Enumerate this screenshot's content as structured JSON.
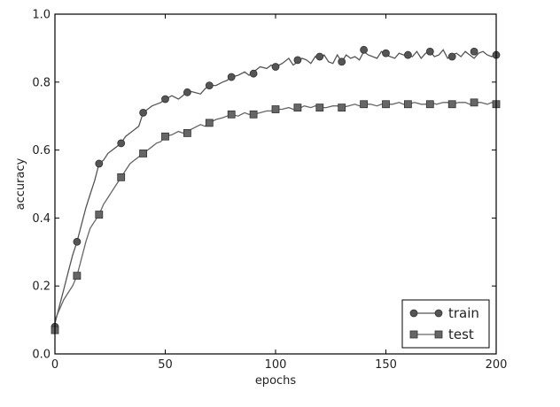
{
  "chart_data": {
    "type": "line",
    "title": "",
    "xlabel": "epochs",
    "ylabel": "accuracy",
    "xlim": [
      0,
      200
    ],
    "ylim": [
      0.0,
      1.0
    ],
    "xticks": [
      "0",
      "50",
      "100",
      "150",
      "200"
    ],
    "yticks": [
      "0.0",
      "0.2",
      "0.4",
      "0.6",
      "0.8",
      "1.0"
    ],
    "grid": false,
    "legend_position": "bottom-right",
    "series": [
      {
        "name": "train",
        "color": "#555555",
        "marker": "circle",
        "line_x": [
          0,
          2,
          4,
          6,
          8,
          10,
          12,
          14,
          16,
          18,
          20,
          22,
          24,
          26,
          28,
          30,
          32,
          34,
          36,
          38,
          40,
          42,
          44,
          46,
          48,
          50,
          53,
          56,
          58,
          60,
          63,
          66,
          68,
          70,
          73,
          76,
          78,
          80,
          83,
          86,
          88,
          90,
          93,
          96,
          98,
          100,
          103,
          106,
          108,
          110,
          112,
          114,
          116,
          118,
          120,
          122,
          124,
          126,
          128,
          130,
          132,
          134,
          136,
          138,
          140,
          142,
          144,
          146,
          148,
          150,
          152,
          154,
          156,
          158,
          160,
          162,
          164,
          166,
          168,
          170,
          172,
          174,
          176,
          178,
          180,
          182,
          184,
          186,
          188,
          190,
          192,
          194,
          196,
          198,
          200
        ],
        "line_y": [
          0.09,
          0.14,
          0.19,
          0.24,
          0.29,
          0.33,
          0.38,
          0.43,
          0.47,
          0.51,
          0.56,
          0.57,
          0.59,
          0.6,
          0.61,
          0.62,
          0.64,
          0.65,
          0.66,
          0.67,
          0.71,
          0.72,
          0.73,
          0.735,
          0.74,
          0.75,
          0.76,
          0.75,
          0.76,
          0.775,
          0.77,
          0.765,
          0.78,
          0.79,
          0.79,
          0.8,
          0.805,
          0.815,
          0.82,
          0.83,
          0.82,
          0.83,
          0.845,
          0.84,
          0.85,
          0.845,
          0.855,
          0.87,
          0.85,
          0.86,
          0.87,
          0.865,
          0.855,
          0.875,
          0.865,
          0.88,
          0.86,
          0.855,
          0.88,
          0.86,
          0.88,
          0.87,
          0.875,
          0.865,
          0.89,
          0.88,
          0.875,
          0.87,
          0.89,
          0.88,
          0.875,
          0.87,
          0.885,
          0.88,
          0.88,
          0.875,
          0.89,
          0.87,
          0.885,
          0.89,
          0.875,
          0.88,
          0.895,
          0.87,
          0.88,
          0.885,
          0.875,
          0.89,
          0.88,
          0.87,
          0.885,
          0.89,
          0.88,
          0.875,
          0.885
        ],
        "marker_x": [
          0,
          10,
          20,
          30,
          40,
          50,
          60,
          70,
          80,
          90,
          100,
          110,
          120,
          130,
          140,
          150,
          160,
          170,
          180,
          190,
          200
        ],
        "marker_y": [
          0.08,
          0.33,
          0.56,
          0.62,
          0.71,
          0.75,
          0.77,
          0.79,
          0.815,
          0.825,
          0.845,
          0.865,
          0.875,
          0.86,
          0.895,
          0.885,
          0.88,
          0.89,
          0.875,
          0.89,
          0.88
        ]
      },
      {
        "name": "test",
        "color": "#666666",
        "marker": "square",
        "line_x": [
          0,
          2,
          4,
          6,
          8,
          10,
          12,
          14,
          16,
          18,
          20,
          22,
          24,
          26,
          28,
          30,
          32,
          34,
          36,
          38,
          40,
          42,
          44,
          46,
          48,
          50,
          53,
          56,
          58,
          60,
          63,
          66,
          68,
          70,
          73,
          76,
          78,
          80,
          83,
          86,
          88,
          90,
          93,
          96,
          98,
          100,
          103,
          106,
          108,
          110,
          113,
          116,
          118,
          120,
          123,
          126,
          128,
          130,
          133,
          136,
          138,
          140,
          143,
          146,
          148,
          150,
          153,
          156,
          158,
          160,
          163,
          166,
          168,
          170,
          173,
          176,
          178,
          180,
          183,
          186,
          188,
          190,
          193,
          196,
          198,
          200
        ],
        "line_y": [
          0.1,
          0.13,
          0.16,
          0.18,
          0.2,
          0.23,
          0.28,
          0.33,
          0.37,
          0.39,
          0.41,
          0.44,
          0.46,
          0.48,
          0.5,
          0.52,
          0.54,
          0.56,
          0.57,
          0.58,
          0.59,
          0.6,
          0.61,
          0.62,
          0.625,
          0.64,
          0.645,
          0.655,
          0.65,
          0.655,
          0.665,
          0.675,
          0.67,
          0.68,
          0.69,
          0.695,
          0.7,
          0.705,
          0.7,
          0.71,
          0.705,
          0.705,
          0.71,
          0.715,
          0.715,
          0.72,
          0.72,
          0.725,
          0.72,
          0.72,
          0.73,
          0.725,
          0.73,
          0.725,
          0.725,
          0.73,
          0.73,
          0.725,
          0.73,
          0.735,
          0.73,
          0.735,
          0.735,
          0.73,
          0.735,
          0.735,
          0.735,
          0.74,
          0.735,
          0.735,
          0.74,
          0.735,
          0.735,
          0.74,
          0.735,
          0.74,
          0.74,
          0.735,
          0.74,
          0.74,
          0.735,
          0.74,
          0.74,
          0.735,
          0.74,
          0.735
        ],
        "marker_x": [
          0,
          10,
          20,
          30,
          40,
          50,
          60,
          70,
          80,
          90,
          100,
          110,
          120,
          130,
          140,
          150,
          160,
          170,
          180,
          190,
          200
        ],
        "marker_y": [
          0.07,
          0.23,
          0.41,
          0.52,
          0.59,
          0.64,
          0.65,
          0.68,
          0.705,
          0.705,
          0.72,
          0.725,
          0.725,
          0.725,
          0.735,
          0.735,
          0.735,
          0.735,
          0.735,
          0.74,
          0.735
        ]
      }
    ]
  }
}
